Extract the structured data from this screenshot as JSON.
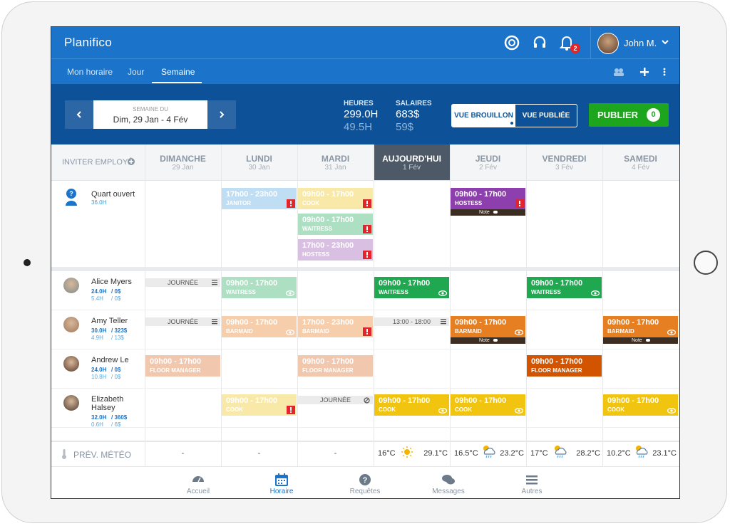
{
  "header": {
    "logo": "Planifico",
    "notification_count": "2",
    "user": "John M."
  },
  "tabs": [
    "Mon horaire",
    "Jour",
    "Semaine"
  ],
  "week": {
    "label": "SEMAINE DU",
    "range": "Dim, 29 Jan - 4 Fév"
  },
  "stats": [
    {
      "label": "HEURES",
      "primary": "299.0H",
      "secondary": "49.5H"
    },
    {
      "label": "SALAIRES",
      "primary": "683$",
      "secondary": "59$"
    }
  ],
  "view_toggle": [
    "VUE BROUILLON",
    "VUE PUBLIÉE"
  ],
  "publish": {
    "label": "PUBLIER",
    "count": "0"
  },
  "invite": "INVITER EMPLOYÉ",
  "days": [
    {
      "name": "DIMANCHE",
      "date": "29 Jan"
    },
    {
      "name": "LUNDI",
      "date": "30 Jan"
    },
    {
      "name": "MARDI",
      "date": "31 Jan"
    },
    {
      "name": "AUJOURD'HUI",
      "date": "1 Fév",
      "today": true
    },
    {
      "name": "JEUDI",
      "date": "2 Fév"
    },
    {
      "name": "VENDREDI",
      "date": "3 Fév"
    },
    {
      "name": "SAMEDI",
      "date": "4 Fév"
    }
  ],
  "open_shifts": {
    "name": "Quart ouvert",
    "hours": "36.0H",
    "days": [
      [],
      [
        {
          "time": "17h00 - 23h00",
          "role": "JANITOR",
          "color": "#5aa9e0",
          "faded": true,
          "alert": true
        }
      ],
      [
        {
          "time": "09h00 - 17h00",
          "role": "COOK",
          "color": "#f0c419",
          "faded": true,
          "alert": true
        },
        {
          "time": "09h00 - 17h00",
          "role": "WAITRESS",
          "color": "#27ae60",
          "faded": true,
          "alert": true
        },
        {
          "time": "17h00 - 23h00",
          "role": "HOSTESS",
          "color": "#9b59b6",
          "faded": true,
          "alert": true
        }
      ],
      [],
      [
        {
          "time": "09h00 - 17h00",
          "role": "HOSTESS",
          "color": "#8e3fae",
          "faded": false,
          "alert": true,
          "note": "Note"
        }
      ],
      [],
      []
    ]
  },
  "employees": [
    {
      "name": "Alice Myers",
      "hours": "24.0H",
      "cost": "/ 0$",
      "extra_hours": "5.4H",
      "extra_cost": "/ 0$",
      "days": [
        [
          {
            "label": "JOURNÉE",
            "icon": "list"
          }
        ],
        [
          {
            "time": "09h00 - 17h00",
            "role": "WAITRESS",
            "color": "#27ae60",
            "faded": true,
            "eye": true
          }
        ],
        [],
        [
          {
            "time": "09h00 - 17h00",
            "role": "WAITRESS",
            "color": "#1fa84f",
            "faded": false,
            "eye": true
          }
        ],
        [],
        [
          {
            "time": "09h00 - 17h00",
            "role": "WAITRESS",
            "color": "#1fa84f",
            "faded": false,
            "eye": true
          }
        ],
        []
      ]
    },
    {
      "name": "Amy Teller",
      "hours": "30.0H",
      "cost": "/ 323$",
      "extra_hours": "4.9H",
      "extra_cost": "/ 13$",
      "days": [
        [
          {
            "label": "JOURNÉE",
            "icon": "list"
          }
        ],
        [
          {
            "time": "09h00 - 17h00",
            "role": "BARMAID",
            "color": "#e67e22",
            "faded": true,
            "eye": true
          }
        ],
        [
          {
            "time": "17h00 - 23h00",
            "role": "BARMAID",
            "color": "#e67e22",
            "faded": true,
            "alert": true
          }
        ],
        [
          {
            "label": "13:00 - 18:00",
            "icon": "list"
          }
        ],
        [
          {
            "time": "09h00 - 17h00",
            "role": "BARMAID",
            "color": "#e67e22",
            "faded": false,
            "eye": true,
            "note": "Note"
          }
        ],
        [],
        [
          {
            "time": "09h00 - 17h00",
            "role": "BARMAID",
            "color": "#e67e22",
            "faded": false,
            "eye": true,
            "note": "Note"
          }
        ]
      ]
    },
    {
      "name": "Andrew Le",
      "hours": "24.0H",
      "cost": "/ 0$",
      "extra_hours": "10.8H",
      "extra_cost": "/ 0$",
      "days": [
        [
          {
            "time": "09h00 - 17h00",
            "role": "FLOOR MANAGER",
            "color": "#d96b2b",
            "faded": true
          }
        ],
        [],
        [
          {
            "time": "09h00 - 17h00",
            "role": "FLOOR MANAGER",
            "color": "#d96b2b",
            "faded": true
          }
        ],
        [],
        [],
        [
          {
            "time": "09h00 - 17h00",
            "role": "FLOOR MANAGER",
            "color": "#d35400",
            "faded": false
          }
        ],
        []
      ]
    },
    {
      "name": "Elizabeth Halsey",
      "hours": "32.0H",
      "cost": "/ 360$",
      "extra_hours": "0.6H",
      "extra_cost": "/ 6$",
      "days": [
        [],
        [
          {
            "time": "09h00 - 17h00",
            "role": "COOK",
            "color": "#f0c419",
            "faded": true,
            "alert": true
          }
        ],
        [
          {
            "label": "JOURNÉE",
            "icon": "block"
          }
        ],
        [
          {
            "time": "09h00 - 17h00",
            "role": "COOK",
            "color": "#f1c40f",
            "faded": false,
            "eye": true
          }
        ],
        [
          {
            "time": "09h00 - 17h00",
            "role": "COOK",
            "color": "#f1c40f",
            "faded": false,
            "eye": true
          }
        ],
        [],
        [
          {
            "time": "09h00 - 17h00",
            "role": "COOK",
            "color": "#f1c40f",
            "faded": false,
            "eye": true
          }
        ]
      ]
    }
  ],
  "weather": {
    "label": "PRÉV. MÉTÉO",
    "days": [
      {
        "text": "-"
      },
      {
        "text": "-"
      },
      {
        "text": "-"
      },
      {
        "low": "16°C",
        "high": "29.1°C",
        "icon": "sun"
      },
      {
        "low": "16.5°C",
        "high": "23.2°C",
        "icon": "rain"
      },
      {
        "low": "17°C",
        "high": "28.2°C",
        "icon": "rain"
      },
      {
        "low": "10.2°C",
        "high": "23.1°C",
        "icon": "rain"
      }
    ]
  },
  "bottom_nav": [
    {
      "label": "Accueil"
    },
    {
      "label": "Horaire",
      "active": true
    },
    {
      "label": "Requêtes"
    },
    {
      "label": "Messages"
    },
    {
      "label": "Autres"
    }
  ]
}
